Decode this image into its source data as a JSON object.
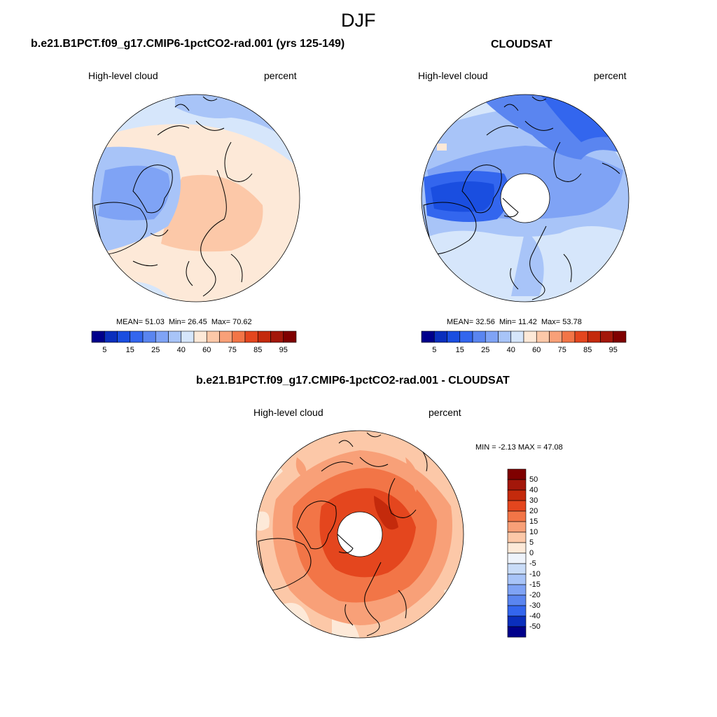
{
  "figure": {
    "title": "DJF"
  },
  "panels": [
    {
      "title": "b.e21.B1PCT.f09_g17.CMIP6-1pctCO2-rad.001 (yrs 125-149)",
      "left_label": "High-level cloud",
      "right_label": "percent",
      "stats": {
        "mean_label": "MEAN=",
        "mean": "51.03",
        "min_label": "Min=",
        "min": "26.45",
        "max_label": "Max=",
        "max": "70.62"
      }
    },
    {
      "title": "CLOUDSAT",
      "left_label": "High-level cloud",
      "right_label": "percent",
      "stats": {
        "mean_label": "MEAN=",
        "mean": "32.56",
        "min_label": "Min=",
        "min": "11.42",
        "max_label": "Max=",
        "max": "53.78"
      }
    },
    {
      "title": "b.e21.B1PCT.f09_g17.CMIP6-1pctCO2-rad.001 - CLOUDSAT",
      "left_label": "High-level cloud",
      "right_label": "percent",
      "stats": {
        "min_label": "MIN =",
        "min": "-2.13",
        "max_label": "MAX =",
        "max": "47.08"
      }
    }
  ],
  "chart_data": [
    {
      "type": "heatmap",
      "projection": "north-polar-stereographic",
      "title": "b.e21.B1PCT.f09_g17.CMIP6-1pctCO2-rad.001 (yrs 125-149)",
      "variable": "High-level cloud",
      "units": "percent",
      "mean": 51.03,
      "min": 26.45,
      "max": 70.62,
      "colorbar_levels": [
        5,
        10,
        15,
        20,
        25,
        30,
        40,
        50,
        60,
        70,
        75,
        80,
        85,
        90,
        95
      ],
      "colorbar_tick_labels": [
        "5",
        "15",
        "25",
        "40",
        "60",
        "75",
        "85",
        "95"
      ],
      "colorbar_colors": [
        "#00008b",
        "#0a2fbd",
        "#1a4ee0",
        "#3366ee",
        "#5a85f0",
        "#7fa3f5",
        "#a8c4f8",
        "#d6e6fb",
        "#fde9d8",
        "#fcc8a8",
        "#f8a078",
        "#f27547",
        "#e4461e",
        "#c42a0c",
        "#a3170a",
        "#7f0000"
      ]
    },
    {
      "type": "heatmap",
      "projection": "north-polar-stereographic",
      "title": "CLOUDSAT",
      "variable": "High-level cloud",
      "units": "percent",
      "mean": 32.56,
      "min": 11.42,
      "max": 53.78,
      "colorbar_levels": [
        5,
        10,
        15,
        20,
        25,
        30,
        40,
        50,
        60,
        70,
        75,
        80,
        85,
        90,
        95
      ],
      "colorbar_tick_labels": [
        "5",
        "15",
        "25",
        "40",
        "60",
        "75",
        "85",
        "95"
      ],
      "colorbar_colors": [
        "#00008b",
        "#0a2fbd",
        "#1a4ee0",
        "#3366ee",
        "#5a85f0",
        "#7fa3f5",
        "#a8c4f8",
        "#d6e6fb",
        "#fde9d8",
        "#fcc8a8",
        "#f8a078",
        "#f27547",
        "#e4461e",
        "#c42a0c",
        "#a3170a",
        "#7f0000"
      ]
    },
    {
      "type": "heatmap",
      "projection": "north-polar-stereographic",
      "title": "b.e21.B1PCT.f09_g17.CMIP6-1pctCO2-rad.001 - CLOUDSAT",
      "variable": "High-level cloud",
      "units": "percent",
      "min": -2.13,
      "max": 47.08,
      "colorbar_orientation": "vertical",
      "colorbar_tick_labels": [
        "50",
        "40",
        "30",
        "20",
        "15",
        "10",
        "5",
        "0",
        "-5",
        "-10",
        "-15",
        "-20",
        "-30",
        "-40",
        "-50"
      ],
      "colorbar_colors": [
        "#7f0000",
        "#a3170a",
        "#c42a0c",
        "#e4461e",
        "#f27547",
        "#f8a078",
        "#fcc8a8",
        "#fde9d8",
        "#eef3fb",
        "#c9dcf8",
        "#a8c4f8",
        "#7fa3f5",
        "#5a85f0",
        "#3366ee",
        "#0a2fbd",
        "#00008b"
      ]
    }
  ]
}
